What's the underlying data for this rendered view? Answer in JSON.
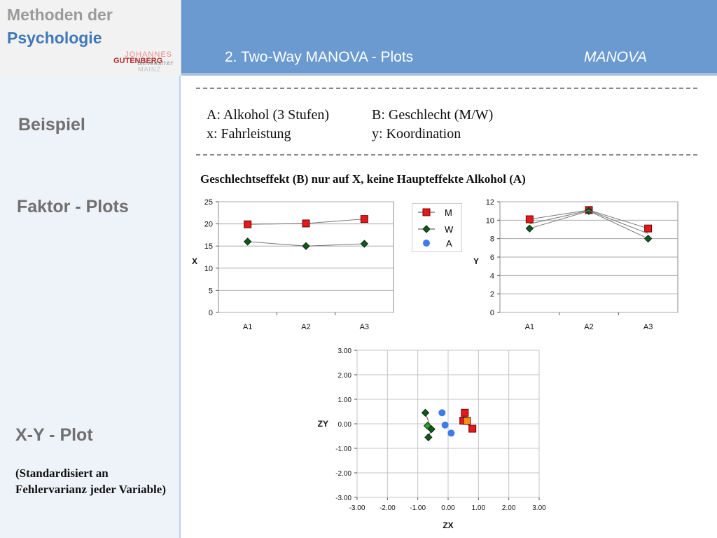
{
  "logo": {
    "line1": "Methoden der",
    "line2": "Psychologie",
    "uni_johannes": "JOHANNES",
    "uni_gutenberg": "GUTENBERG",
    "uni_universitaet": "UNIVERSITÄT",
    "uni_mainz": "MAINZ"
  },
  "header": {
    "title": "2. Two-Way MANOVA  - Plots",
    "topic": "MANOVA"
  },
  "sidebar": {
    "beispiel": "Beispiel",
    "faktor_plots": "Faktor - Plots",
    "xy_plot": "X-Y - Plot",
    "note": "(Standardisiert an Fehlervarianz jeder Variable)"
  },
  "example": {
    "factor_a": "A: Alkohol (3 Stufen)",
    "factor_b": "B: Geschlecht (M/W)",
    "var_x": "x: Fahrleistung",
    "var_y": "y: Koordination"
  },
  "subtitle": "Geschlechtseffekt (B) nur auf X, keine Haupteffekte Alkohol (A)",
  "legend": {
    "m": "M",
    "w": "W",
    "a": "A"
  },
  "colors": {
    "m": "#e31a1c",
    "w": "#14561e",
    "a": "#3c7be8",
    "header": "#6a9ad0"
  },
  "chart_data": [
    {
      "type": "line",
      "ylabel": "X",
      "categories": [
        "A1",
        "A2",
        "A3"
      ],
      "ylim": [
        0,
        25
      ],
      "yticks": [
        0,
        5,
        10,
        15,
        20,
        25
      ],
      "grid": true,
      "legend_position": "right",
      "series": [
        {
          "name": "M",
          "values": [
            19.9,
            20.1,
            21.1
          ]
        },
        {
          "name": "W",
          "values": [
            16.0,
            15.0,
            15.5
          ]
        }
      ]
    },
    {
      "type": "line",
      "ylabel": "Y",
      "categories": [
        "A1",
        "A2",
        "A3"
      ],
      "ylim": [
        0,
        12
      ],
      "yticks": [
        0,
        2,
        4,
        6,
        8,
        10,
        12
      ],
      "grid": true,
      "series": [
        {
          "name": "M",
          "values": [
            10.1,
            11.1,
            9.1
          ]
        },
        {
          "name": "W",
          "values": [
            9.1,
            11.0,
            8.0
          ]
        },
        {
          "values": [
            9.6,
            11.05,
            8.55
          ],
          "line_only": true
        }
      ]
    },
    {
      "type": "scatter",
      "xlabel": "ZX",
      "ylabel": "ZY",
      "xlim": [
        -3,
        3
      ],
      "ylim": [
        -3,
        3
      ],
      "xticks": [
        "-3.00",
        "-2.00",
        "-1.00",
        "0.00",
        "1.00",
        "2.00",
        "3.00"
      ],
      "yticks": [
        "3.00",
        "2.00",
        "1.00",
        "0.00",
        "-1.00",
        "-2.00",
        "-3.00"
      ],
      "grid": true,
      "series": [
        {
          "name": "M",
          "points": [
            [
              0.55,
              0.45
            ],
            [
              0.5,
              0.13
            ],
            [
              0.8,
              -0.2
            ]
          ]
        },
        {
          "name": "W",
          "points": [
            [
              -0.75,
              0.45
            ],
            [
              -0.55,
              -0.22
            ],
            [
              -0.65,
              -0.55
            ]
          ]
        },
        {
          "name": "W",
          "points": [
            [
              -0.68,
              -0.08
            ]
          ],
          "color": "#2aa02a"
        },
        {
          "name": "A",
          "points": [
            [
              -0.2,
              0.45
            ],
            [
              -0.1,
              -0.05
            ],
            [
              0.1,
              -0.38
            ]
          ]
        },
        {
          "name": "M",
          "points": [
            [
              0.62,
              0.12
            ]
          ],
          "color": "#ff8c1a"
        }
      ]
    }
  ]
}
